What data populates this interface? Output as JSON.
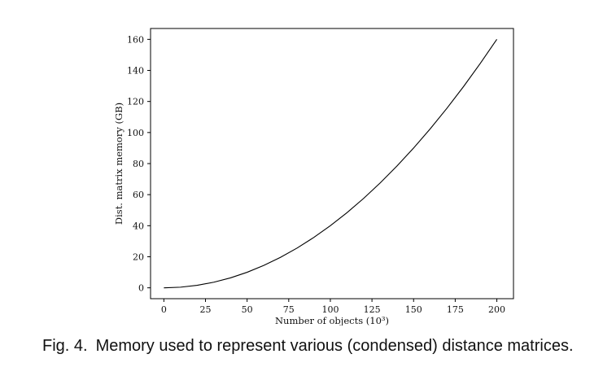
{
  "chart_data": {
    "type": "line",
    "xlabel": "Number of objects (10³)",
    "ylabel": "Dist. matrix memory (GB)",
    "xlim": [
      -8,
      210
    ],
    "ylim": [
      -7,
      167
    ],
    "xticks": [
      0,
      25,
      50,
      75,
      100,
      125,
      150,
      175,
      200
    ],
    "yticks": [
      0,
      20,
      40,
      60,
      80,
      100,
      120,
      140,
      160
    ],
    "grid": false,
    "series": [
      {
        "color": "#000000",
        "x": [
          0,
          10,
          20,
          30,
          40,
          50,
          60,
          70,
          80,
          90,
          100,
          110,
          120,
          130,
          140,
          150,
          160,
          170,
          180,
          190,
          200
        ],
        "y": [
          0,
          0.4,
          1.6,
          3.6,
          6.4,
          10,
          14.4,
          19.6,
          25.6,
          32.4,
          40,
          48.4,
          57.6,
          67.6,
          78.4,
          90,
          102.4,
          115.6,
          129.6,
          144.4,
          160
        ]
      }
    ]
  },
  "caption": {
    "label": "Fig. 4.",
    "text": "Memory used to represent various (condensed) distance matrices."
  }
}
